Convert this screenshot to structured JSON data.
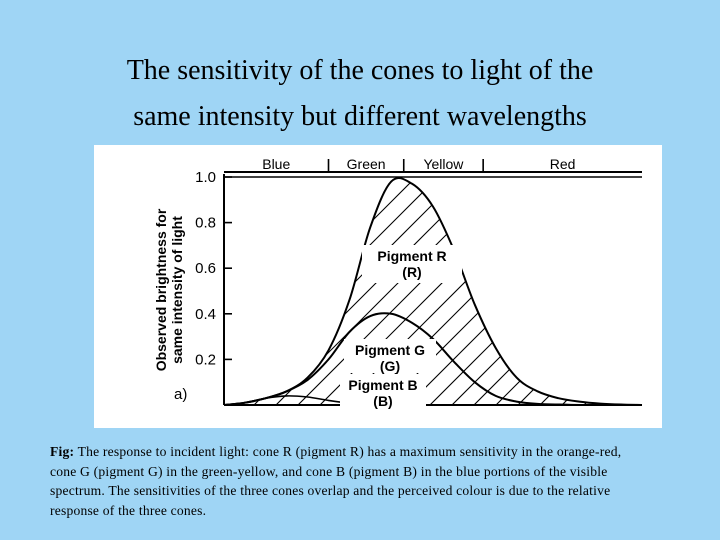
{
  "slide": {
    "title_line1": "The sensitivity of the cones to light of the",
    "title_line2": "same intensity but different wavelengths"
  },
  "caption": {
    "prefix": "Fig:",
    "line1": " The response to incident light: cone R (pigment R) has a maximum sensitivity in the orange-red,",
    "line2": " cone G (pigment G) in the green-yellow, and cone B (pigment B) in the blue portions of the visible",
    "line3": "spectrum. The sensitivities of the three cones overlap and the perceived colour is due to the relative",
    "line4": "response of the three cones."
  },
  "chart_data": {
    "type": "area",
    "panel_label": "a)",
    "ylabel_line1": "Observed brightness for",
    "ylabel_line2": "same intensity of light",
    "ylim": [
      0,
      1.0
    ],
    "yticks": [
      "1.0",
      "0.8",
      "0.6",
      "0.4",
      "0.2"
    ],
    "ytick_values": [
      1.0,
      0.8,
      0.6,
      0.4,
      0.2
    ],
    "color_bands": [
      "Blue",
      "Green",
      "Yellow",
      "Red"
    ],
    "band_bounds": [
      0,
      0.25,
      0.43,
      0.62,
      1.0
    ],
    "x": [
      0,
      0.05,
      0.1,
      0.15,
      0.2,
      0.25,
      0.3,
      0.35,
      0.4,
      0.45,
      0.5,
      0.55,
      0.6,
      0.65,
      0.7,
      0.75,
      0.8,
      0.85,
      0.9,
      0.95,
      1.0
    ],
    "series": [
      {
        "label_line1": "Pigment R",
        "label_line2": "(R)",
        "hatched": true,
        "values": [
          0.0,
          0.01,
          0.03,
          0.06,
          0.12,
          0.24,
          0.46,
          0.78,
          0.98,
          0.97,
          0.87,
          0.68,
          0.44,
          0.25,
          0.12,
          0.06,
          0.03,
          0.015,
          0.006,
          0.002,
          0.0
        ]
      },
      {
        "label_line1": "Pigment  G",
        "label_line2": "(G)",
        "hatched": false,
        "values": [
          0.0,
          0.01,
          0.03,
          0.06,
          0.11,
          0.2,
          0.32,
          0.39,
          0.4,
          0.36,
          0.29,
          0.19,
          0.1,
          0.04,
          0.015,
          0.005,
          0.002,
          0.0,
          0.0,
          0.0,
          0.0
        ]
      },
      {
        "label_line1": "Pigment  B",
        "label_line2": "(B)",
        "hatched": false,
        "values": [
          0.0,
          0.01,
          0.03,
          0.04,
          0.035,
          0.02,
          0.008,
          0.002,
          0.0,
          0.0,
          0.0,
          0.0,
          0.0,
          0.0,
          0.0,
          0.0,
          0.0,
          0.0,
          0.0,
          0.0,
          0.0
        ]
      }
    ]
  }
}
